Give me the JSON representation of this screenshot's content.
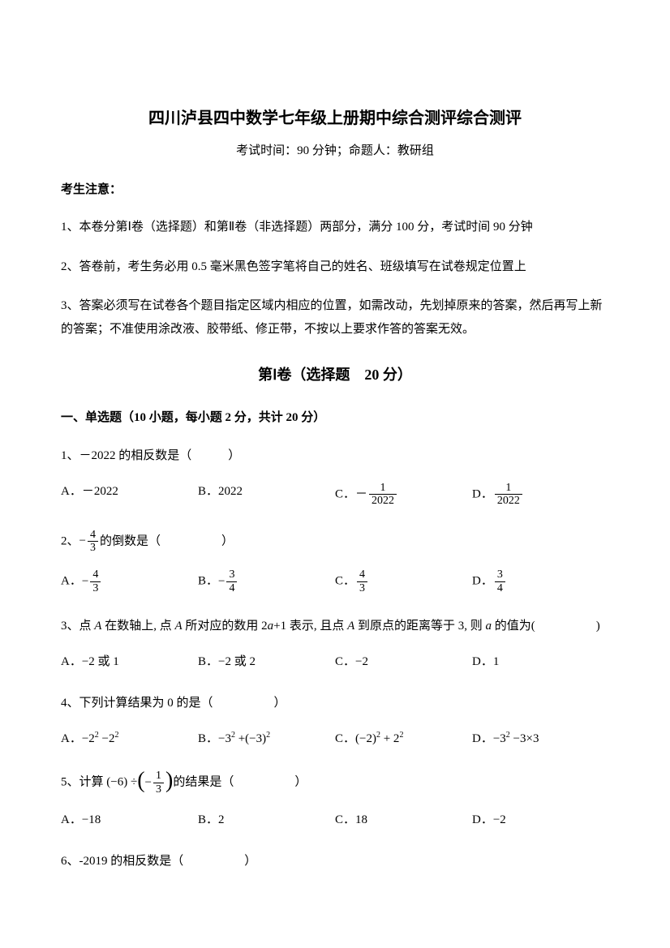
{
  "title": "四川泸县四中数学七年级上册期中综合测评综合测评",
  "subtitle": "考试时间：90 分钟；命题人：教研组",
  "notice_header": "考生注意：",
  "notices": [
    "1、本卷分第Ⅰ卷（选择题）和第Ⅱ卷（非选择题）两部分，满分 100 分，考试时间 90 分钟",
    "2、答卷前，考生务必用 0.5 毫米黑色签字笔将自己的姓名、班级填写在试卷规定位置上",
    "3、答案必须写在试卷各个题目指定区域内相应的位置，如需改动，先划掉原来的答案，然后再写上新的答案；不准使用涂改液、胶带纸、修正带，不按以上要求作答的答案无效。"
  ],
  "section1_title": "第Ⅰ卷（选择题　20 分）",
  "subsection1": "一、单选题（10 小题，每小题 2 分，共计 20 分）",
  "q1": {
    "stem": "1、－2022 的相反数是（　　　）",
    "a": "A．－2022",
    "b": "B．2022",
    "c_prefix": "C．－",
    "c_num": "1",
    "c_den": "2022",
    "d_prefix": "D．",
    "d_num": "1",
    "d_den": "2022"
  },
  "q2": {
    "stem_prefix": "2、",
    "stem_num": "4",
    "stem_den": "3",
    "stem_suffix": "的倒数是（　　　　　）",
    "a_prefix": "A．",
    "a_num": "4",
    "a_den": "3",
    "b_prefix": "B．",
    "b_num": "3",
    "b_den": "4",
    "c_prefix": "C．",
    "c_num": "4",
    "c_den": "3",
    "d_prefix": "D．",
    "d_num": "3",
    "d_den": "4"
  },
  "q3": {
    "stem": "3、点 A 在数轴上, 点 A 所对应的数用 2a+1 表示, 且点 A 到原点的距离等于 3, 则 a 的值为(　　　　　)",
    "a": "A．−2 或 1",
    "b": "B．−2 或 2",
    "c": "C．−2",
    "d": "D．1"
  },
  "q4": {
    "stem": "4、下列计算结果为 0 的是（　　　　　）",
    "a": "A．−2² −2²",
    "b": "B．−3² +(−3)²",
    "c": "C．(−2)² + 2²",
    "d": "D．−3² −3×3"
  },
  "q5": {
    "stem_prefix": "5、计算 (−6) ÷",
    "stem_num": "1",
    "stem_den": "3",
    "stem_suffix": "的结果是（　　　　　）",
    "a": "A．−18",
    "b": "B．2",
    "c": "C．18",
    "d": "D．−2"
  },
  "q6": {
    "stem": "6、-2019 的相反数是（　　　　　）"
  }
}
